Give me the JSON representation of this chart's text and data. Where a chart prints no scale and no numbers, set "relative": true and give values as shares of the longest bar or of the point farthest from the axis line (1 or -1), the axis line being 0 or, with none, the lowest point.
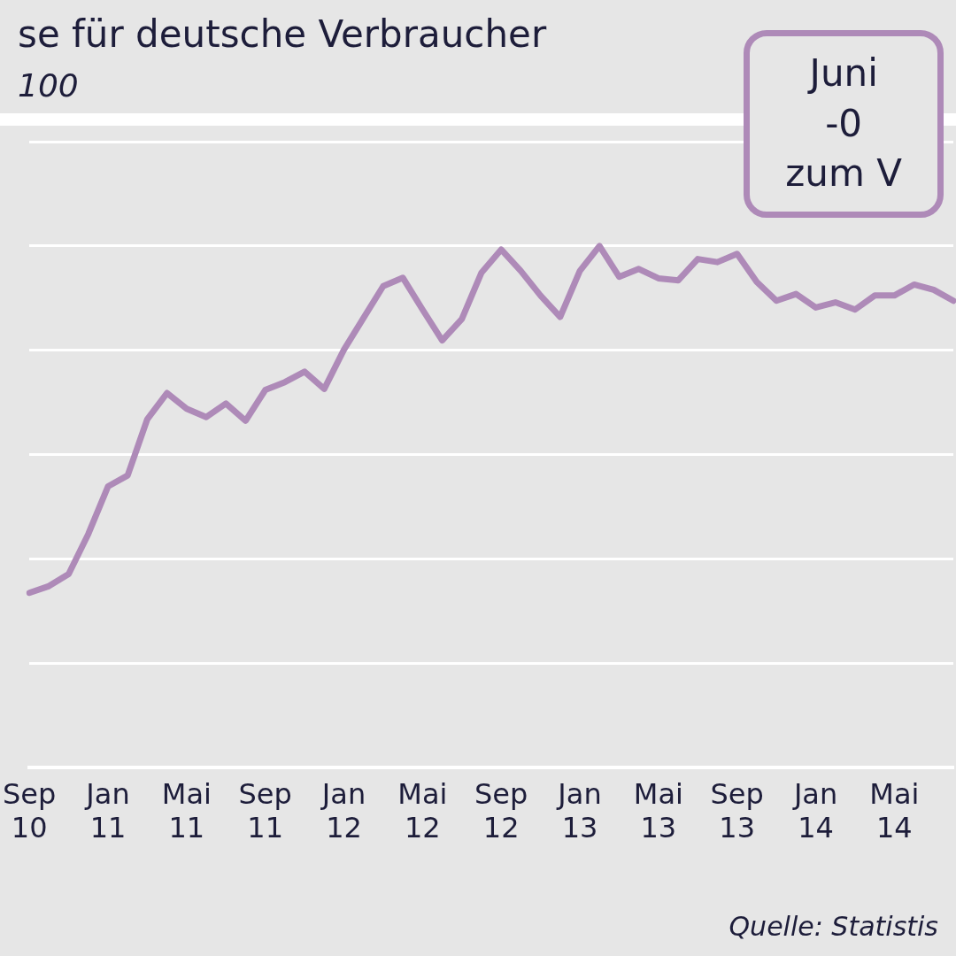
{
  "chart_data": {
    "type": "line",
    "title": "se für deutsche Verbraucher",
    "subtitle": "100",
    "categories": [
      "Sep 10",
      null,
      null,
      null,
      "Jan 11",
      null,
      null,
      null,
      "Mai 11",
      null,
      null,
      null,
      "Sep 11",
      null,
      null,
      null,
      "Jan 12",
      null,
      null,
      null,
      "Mai 12",
      null,
      null,
      null,
      "Sep 12",
      null,
      null,
      null,
      "Jan 13",
      null,
      null,
      null,
      "Mai 13",
      null,
      null,
      null,
      "Sep 13",
      null,
      null,
      null,
      "Jan 14",
      null,
      null,
      null,
      "Mai 14",
      null,
      null,
      null
    ],
    "series": [
      {
        "color": "#ae8ab8",
        "values": [
          0.335,
          0.348,
          0.371,
          0.448,
          0.539,
          0.56,
          0.668,
          0.718,
          0.688,
          0.672,
          0.698,
          0.665,
          0.724,
          0.739,
          0.759,
          0.726,
          0.801,
          0.862,
          0.923,
          0.939,
          0.878,
          0.819,
          0.86,
          0.949,
          0.993,
          0.952,
          0.905,
          0.864,
          0.952,
          1,
          0.941,
          0.956,
          0.938,
          0.934,
          0.975,
          0.969,
          0.985,
          0.931,
          0.895,
          0.908,
          0.882,
          0.892,
          0.878,
          0.905,
          0.905,
          0.926,
          0.916,
          0.895
        ]
      }
    ],
    "relative": true,
    "grid": "y",
    "legend": false,
    "marker": "none",
    "line_style": "solid",
    "annotations": [
      "Juni\n-0\nzum V",
      "Quelle: Statistis"
    ]
  }
}
